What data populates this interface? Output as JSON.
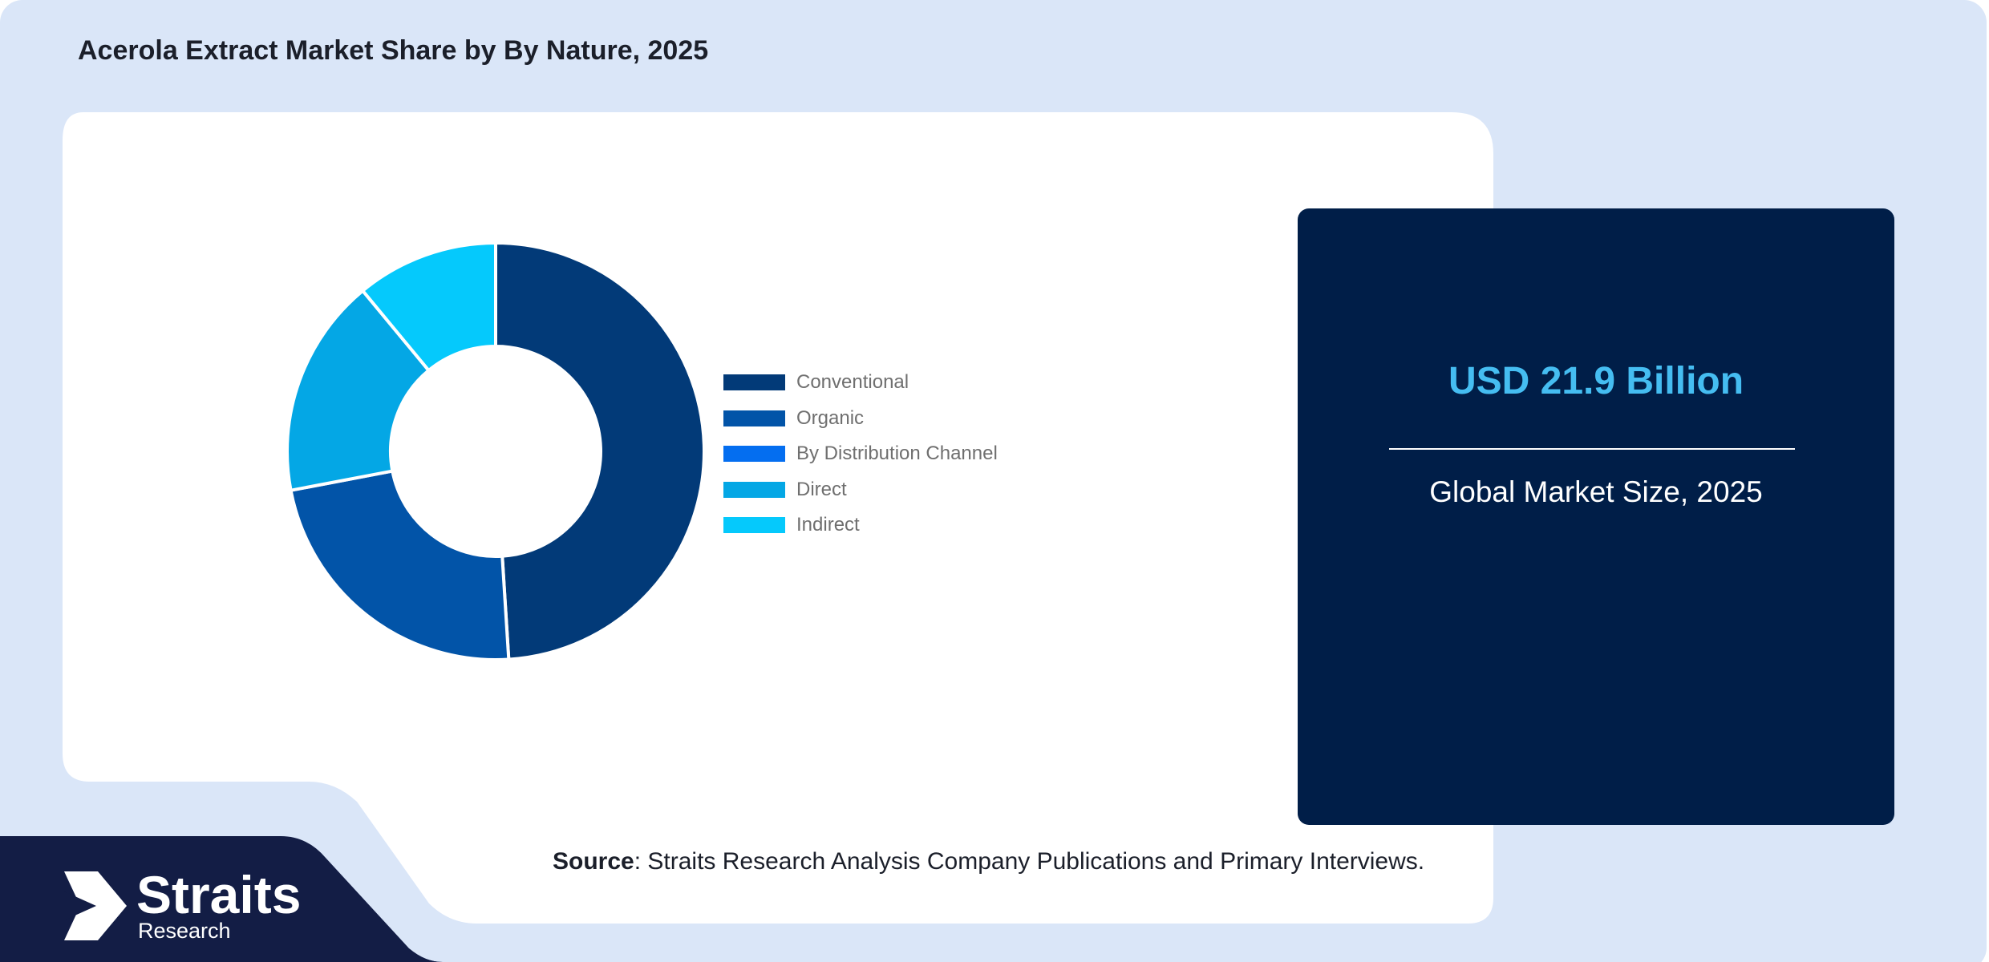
{
  "title": "Acerola Extract Market Share by By Nature, 2025",
  "chart_data": {
    "type": "pie",
    "variant": "donut",
    "categories": [
      "Conventional",
      "Organic",
      "By Distribution Channel",
      "Direct",
      "Indirect"
    ],
    "values": [
      49,
      23,
      0,
      17,
      11
    ],
    "colors": [
      "#023a78",
      "#0254a8",
      "#046ef0",
      "#04a7e5",
      "#05c9fc"
    ],
    "unit": "%",
    "legend_position": "right"
  },
  "stat": {
    "value": "USD 21.9 Billion",
    "label": "Global Market Size, 2025"
  },
  "source": {
    "label": "Source",
    "text": ": Straits Research Analysis Company Publications and Primary Interviews."
  },
  "logo": {
    "name": "Straits",
    "sub": "Research"
  },
  "colors": {
    "page_bg": "#dae6f8",
    "panel": "#ffffff",
    "dark_navy": "#001e48",
    "footer_navy": "#131d45",
    "accent": "#45bdf1"
  }
}
